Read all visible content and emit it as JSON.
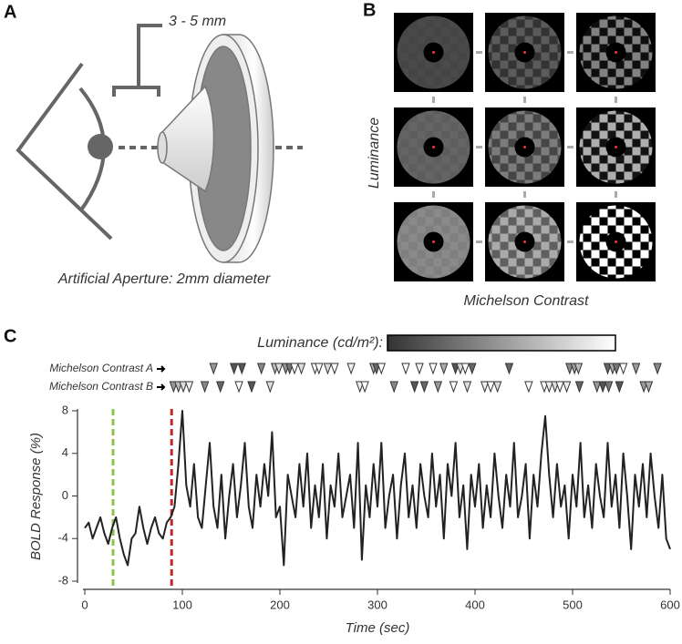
{
  "panels": {
    "a": {
      "label": "A",
      "dimension": "3 - 5 mm",
      "caption": "Artificial Aperture: 2mm diameter"
    },
    "b": {
      "label": "B",
      "y_label": "Luminance",
      "x_label": "Michelson Contrast"
    }
  },
  "chart_data": {
    "type": "line",
    "panel_label": "C",
    "colorbar_label": "Luminance (cd/m²):",
    "x_label": "Time (sec)",
    "y_label": "BOLD Response (%)",
    "xlim": [
      0,
      600
    ],
    "xticks": [
      0,
      100,
      200,
      300,
      400,
      500,
      600
    ],
    "ylim": [
      -8,
      8
    ],
    "yticks": [
      8,
      4,
      0,
      -4,
      -8
    ],
    "x": [
      0,
      4,
      8,
      12,
      16,
      20,
      24,
      28,
      32,
      36,
      40,
      44,
      48,
      52,
      56,
      60,
      64,
      68,
      72,
      76,
      80,
      84,
      88,
      92,
      96,
      100,
      104,
      108,
      112,
      116,
      120,
      124,
      128,
      132,
      136,
      140,
      144,
      148,
      152,
      156,
      160,
      164,
      168,
      172,
      176,
      180,
      184,
      188,
      192,
      196,
      200,
      204,
      208,
      212,
      216,
      220,
      224,
      228,
      232,
      236,
      240,
      244,
      248,
      252,
      256,
      260,
      264,
      268,
      272,
      276,
      280,
      284,
      288,
      292,
      296,
      300,
      304,
      308,
      312,
      316,
      320,
      324,
      328,
      332,
      336,
      340,
      344,
      348,
      352,
      356,
      360,
      364,
      368,
      372,
      376,
      380,
      384,
      388,
      392,
      396,
      400,
      404,
      408,
      412,
      416,
      420,
      424,
      428,
      432,
      436,
      440,
      444,
      448,
      452,
      456,
      460,
      464,
      468,
      472,
      476,
      480,
      484,
      488,
      492,
      496,
      500,
      504,
      508,
      512,
      516,
      520,
      524,
      528,
      532,
      536,
      540,
      544,
      548,
      552,
      556,
      560,
      564,
      568,
      572,
      576,
      580,
      584,
      588,
      592,
      596,
      600
    ],
    "series": [
      {
        "color": "#222222",
        "values": [
          -3,
          -2.5,
          -4,
          -3,
          -2,
          -3.5,
          -4.5,
          -3,
          -2,
          -4,
          -5.5,
          -6.5,
          -4,
          -3.5,
          -1,
          -3,
          -4.5,
          -3,
          -2,
          -3.5,
          -4,
          -2.5,
          -2,
          -1,
          3,
          8,
          1,
          -1,
          3,
          -2,
          -3,
          1,
          5,
          -1,
          -3,
          2,
          -4,
          0,
          3,
          -2,
          1,
          5,
          -1,
          -3,
          2,
          -1,
          3,
          0,
          6,
          -2,
          -1,
          -6.5,
          2,
          0,
          -2,
          3,
          -1,
          4,
          -3,
          1,
          -2,
          3,
          -4,
          1,
          -1,
          4,
          -2,
          0,
          2,
          -3,
          5,
          -6,
          1,
          -2,
          3,
          -1,
          5,
          -3,
          0,
          2,
          -4,
          1,
          4,
          -2,
          1,
          -3,
          3,
          0,
          -2,
          4,
          -1,
          2,
          -4,
          3,
          0,
          5,
          -2,
          1,
          -5,
          2,
          -1,
          3,
          -3,
          1,
          -2,
          4,
          0,
          -3,
          2,
          -1,
          5,
          -2,
          0,
          3,
          -4,
          2,
          -1,
          4,
          7.5,
          2,
          -2,
          3,
          -1,
          1,
          -4,
          2,
          -1,
          5,
          -2,
          1,
          -3,
          3,
          0,
          -2,
          5,
          -1,
          2,
          -3,
          4,
          0,
          -5,
          2,
          -1,
          3,
          -2,
          4,
          0,
          -3,
          2,
          -4,
          -5
        ]
      }
    ],
    "markers": [
      {
        "name": "Michelson Contrast A",
        "x": [
          132,
          153,
          161,
          181,
          195,
          199,
          206,
          210,
          215,
          222,
          236,
          240,
          249,
          256,
          273,
          296,
          299,
          304,
          329,
          343,
          357,
          368,
          380,
          385,
          390,
          397,
          435,
          497,
          502,
          506,
          536,
          541,
          545,
          552,
          565,
          587
        ],
        "colors": [
          "#999",
          "#555",
          "#555",
          "#888",
          "#bbb",
          "#ddd",
          "#999",
          "#777",
          "#fff",
          "#ddd",
          "#fff",
          "#fff",
          "#ddd",
          "#fff",
          "#eee",
          "#aaa",
          "#666",
          "#fff",
          "#fff",
          "#eee",
          "#fff",
          "#aaa",
          "#555",
          "#ddd",
          "#fff",
          "#666",
          "#666",
          "#888",
          "#999",
          "#bbb",
          "#666",
          "#aaa",
          "#777",
          "#fff",
          "#999",
          "#888"
        ]
      },
      {
        "name": "Michelson Contrast B",
        "x": [
          91,
          96,
          101,
          107,
          123,
          139,
          158,
          171,
          190,
          282,
          287,
          317,
          338,
          348,
          362,
          378,
          392,
          410,
          416,
          423,
          455,
          471,
          476,
          482,
          487,
          494,
          507,
          525,
          531,
          537,
          548,
          573,
          578
        ],
        "colors": [
          "#999",
          "#bbb",
          "#ddd",
          "#eee",
          "#888",
          "#666",
          "#fff",
          "#555",
          "#ddd",
          "#eee",
          "#fff",
          "#888",
          "#555",
          "#666",
          "#999",
          "#fff",
          "#ddd",
          "#eee",
          "#fff",
          "#ddd",
          "#fff",
          "#fff",
          "#eee",
          "#ddd",
          "#fff",
          "#eee",
          "#666",
          "#999",
          "#555",
          "#777",
          "#555",
          "#999",
          "#aaa"
        ]
      }
    ],
    "vlines": [
      {
        "x": 29,
        "color": "#8bc34a"
      },
      {
        "x": 89,
        "color": "#c62828"
      }
    ]
  }
}
